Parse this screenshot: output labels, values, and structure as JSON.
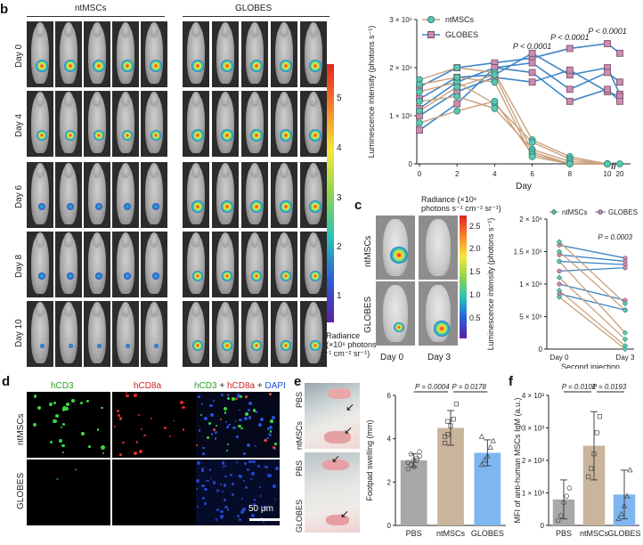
{
  "panels": {
    "b": "b",
    "c": "c",
    "d": "d",
    "e": "e",
    "f": "f"
  },
  "b": {
    "group_left": "ntMSCs",
    "group_right": "GLOBES",
    "rows": [
      "Day 0",
      "Day 4",
      "Day 6",
      "Day 8",
      "Day 10"
    ],
    "colorbar_ticks": [
      "5",
      "4",
      "3",
      "2",
      "1"
    ],
    "colorbar_label": [
      "Radiance",
      "(×10⁶ photons",
      "s⁻¹ cm⁻² sr⁻¹)"
    ]
  },
  "c": {
    "images_left_label": "Day 0",
    "images_right_label": "Day 3",
    "row_top": "ntMSCs",
    "row_bottom": "GLOBES",
    "colorbar_title": [
      "Radiance (×10⁶",
      "photons s⁻¹ cm⁻² sr⁻¹)"
    ],
    "colorbar_ticks": [
      "2.5",
      "2.0",
      "1.5",
      "1.0",
      "0.5"
    ]
  },
  "d": {
    "columns": [
      "hCD3",
      "hCD8a"
    ],
    "merge_parts": [
      "hCD3",
      " + ",
      "hCD8a",
      " + ",
      "DAPI"
    ],
    "rows": [
      "ntMSCs",
      "GLOBES"
    ],
    "scalebar": "50 μm"
  },
  "e": {
    "photo_labels": [
      "PBS",
      "ntMSCs",
      "PBS",
      "GLOBES"
    ]
  },
  "chart_data": [
    {
      "id": "b-line",
      "type": "line",
      "xlabel": "Day",
      "ylabel": "Luminescence intensity (photons s⁻¹)",
      "x_tick_labels": [
        "0",
        "2",
        "4",
        "6",
        "8",
        "10",
        "//",
        "20"
      ],
      "y_ticks": [
        0,
        1000000,
        2000000,
        3000000
      ],
      "y_tick_labels": [
        "0",
        "1 × 10⁶",
        "2 × 10⁶",
        "3 × 10⁶"
      ],
      "ylim": [
        0,
        3000000
      ],
      "legend": [
        "ntMSCs",
        "GLOBES"
      ],
      "colors": {
        "ntMSCs": "#c9a27e",
        "GLOBES": "#3f86c6",
        "ntMSCs_marker": "#5bc8b4",
        "GLOBES_marker": "#c98eae"
      },
      "x": [
        0,
        2,
        4,
        6,
        8,
        10
      ],
      "series_ntMSCs": [
        {
          "values": [
            1750000,
            2000000,
            1900000,
            500000,
            150000,
            0
          ]
        },
        {
          "values": [
            1500000,
            1700000,
            1250000,
            450000,
            100000,
            0
          ]
        },
        {
          "values": [
            1300000,
            1400000,
            1150000,
            300000,
            50000,
            0
          ]
        },
        {
          "values": [
            1100000,
            1600000,
            1850000,
            250000,
            0,
            0
          ]
        },
        {
          "values": [
            850000,
            1100000,
            1300000,
            200000,
            0,
            0
          ]
        },
        {
          "values": [
            1650000,
            1800000,
            1700000,
            150000,
            0,
            0
          ]
        }
      ],
      "series_ntMSCs_day20": [
        0
      ],
      "series_GLOBES": [
        {
          "values": [
            1600000,
            2000000,
            2100000,
            2200000,
            2400000,
            2500000
          ],
          "day20": 2300000
        },
        {
          "values": [
            1350000,
            1800000,
            1850000,
            2300000,
            1850000,
            2000000
          ],
          "day20": 1450000
        },
        {
          "values": [
            1150000,
            1700000,
            2000000,
            2100000,
            1550000,
            1900000
          ],
          "day20": 1700000
        },
        {
          "values": [
            1000000,
            1500000,
            1800000,
            1700000,
            1950000,
            1500000
          ],
          "day20": 1400000
        },
        {
          "values": [
            700000,
            1250000,
            2000000,
            1900000,
            1300000,
            1550000
          ],
          "day20": 1300000
        }
      ],
      "annotations": [
        {
          "x": 6,
          "text": "P < 0.0001"
        },
        {
          "x": 8,
          "text": "P < 0.0001"
        },
        {
          "x": 10,
          "text": "P < 0.0001"
        }
      ]
    },
    {
      "id": "c-line",
      "type": "line",
      "xlabel": "Second injection",
      "ylabel": "Luminescence intensity (photons s⁻¹)",
      "categories": [
        "Day 0",
        "Day 3"
      ],
      "y_ticks": [
        0,
        500000,
        1000000,
        1500000,
        2000000
      ],
      "y_tick_labels": [
        "0",
        "5 × 10⁵",
        "1 × 10⁶",
        "1.5 × 10⁶",
        "2 × 10⁶"
      ],
      "ylim": [
        0,
        2000000
      ],
      "legend": [
        "ntMSCs",
        "GLOBES"
      ],
      "series_ntMSCs": [
        [
          1650000,
          700000
        ],
        [
          1500000,
          600000
        ],
        [
          1350000,
          250000
        ],
        [
          1100000,
          150000
        ],
        [
          900000,
          50000
        ],
        [
          800000,
          0
        ]
      ],
      "series_GLOBES": [
        [
          1600000,
          1400000
        ],
        [
          1450000,
          1350000
        ],
        [
          1350000,
          1300000
        ],
        [
          1200000,
          1250000
        ],
        [
          1000000,
          750000
        ],
        [
          850000,
          600000
        ]
      ],
      "annotation": "P = 0.0003"
    },
    {
      "id": "e-bar",
      "type": "bar",
      "ylabel": "Footpad swelling (mm)",
      "categories": [
        "PBS",
        "ntMSCs",
        "GLOBES"
      ],
      "values": [
        3.0,
        4.5,
        3.35
      ],
      "errors": [
        0.3,
        0.8,
        0.6
      ],
      "points": [
        [
          2.6,
          2.8,
          3.0,
          3.1,
          3.2,
          2.9,
          3.3,
          2.7,
          3.0,
          3.4
        ],
        [
          3.8,
          4.2,
          4.6,
          4.9,
          5.6,
          4.1,
          4.8
        ],
        [
          2.8,
          3.0,
          3.2,
          3.6,
          3.9,
          4.1
        ]
      ],
      "ylim": [
        0,
        6
      ],
      "y_ticks": [
        0,
        2,
        4,
        6
      ],
      "colors": [
        "#a8a8a8",
        "#c9b49c",
        "#7fb6f0"
      ],
      "annotations": [
        "P = 0.0004",
        "P = 0.0178"
      ]
    },
    {
      "id": "f-bar",
      "type": "bar",
      "ylabel": "MFI of anti-human MSCs IgM (a.u.)",
      "categories": [
        "PBS",
        "ntMSCs",
        "GLOBES"
      ],
      "values": [
        800,
        2450,
        950
      ],
      "errors": [
        600,
        1050,
        750
      ],
      "points": [
        [
          150,
          300,
          700,
          900,
          1150
        ],
        [
          1500,
          1750,
          2200,
          2850,
          3350
        ],
        [
          200,
          350,
          600,
          900,
          1700
        ]
      ],
      "ylim": [
        0,
        4000
      ],
      "y_ticks": [
        0,
        1000,
        2000,
        3000,
        4000
      ],
      "y_tick_labels": [
        "0",
        "1 × 10³",
        "2 × 10³",
        "3 × 10³",
        "4 × 10³"
      ],
      "colors": [
        "#a8a8a8",
        "#c9b49c",
        "#7fb6f0"
      ],
      "annotations": [
        "P = 0.0101",
        "P = 0.0193"
      ]
    }
  ]
}
